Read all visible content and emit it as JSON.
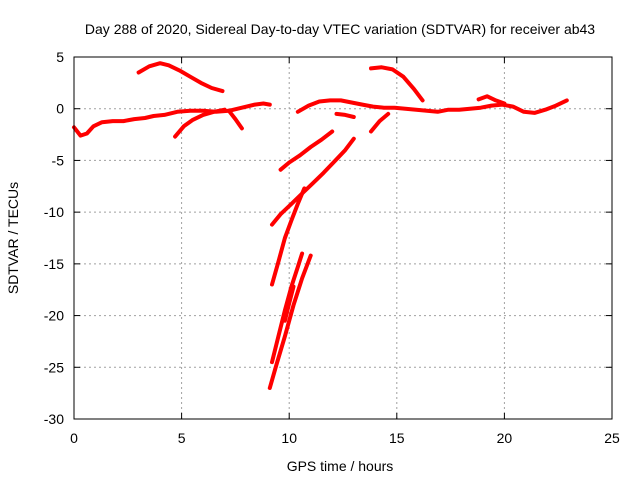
{
  "chart_data": {
    "type": "scatter",
    "title": "Day 288 of 2020, Sidereal Day-to-day VTEC variation (SDTVAR) for receiver ab43",
    "xlabel": "GPS time / hours",
    "ylabel": "SDTVAR / TECUs",
    "xlim": [
      0,
      25
    ],
    "ylim": [
      -30,
      5
    ],
    "xticks": [
      0,
      5,
      10,
      15,
      20,
      25
    ],
    "yticks": [
      -30,
      -25,
      -20,
      -15,
      -10,
      -5,
      0,
      5
    ],
    "grid": true,
    "series_color": "#ff0000",
    "series": [
      {
        "x": [
          0.0,
          0.3,
          0.6,
          0.9,
          1.3,
          1.8,
          2.3,
          2.8,
          3.3,
          3.7,
          4.2,
          4.8,
          5.4,
          6.0,
          6.6,
          7.2,
          7.8,
          8.4,
          8.8,
          9.1
        ],
        "y": [
          -1.8,
          -2.6,
          -2.4,
          -1.7,
          -1.3,
          -1.2,
          -1.2,
          -1.0,
          -0.9,
          -0.7,
          -0.6,
          -0.3,
          -0.2,
          -0.2,
          -0.3,
          -0.2,
          0.1,
          0.4,
          0.5,
          0.4
        ]
      },
      {
        "x": [
          3.0,
          3.5,
          4.0,
          4.4,
          4.9,
          5.4,
          5.9,
          6.4,
          6.9
        ],
        "y": [
          3.5,
          4.1,
          4.4,
          4.2,
          3.7,
          3.1,
          2.5,
          2.0,
          1.7
        ]
      },
      {
        "x": [
          4.7,
          5.1,
          5.5,
          6.0,
          6.5,
          7.0
        ],
        "y": [
          -2.7,
          -1.7,
          -1.1,
          -0.6,
          -0.3,
          -0.1
        ]
      },
      {
        "x": [
          7.2,
          7.5,
          7.8
        ],
        "y": [
          -0.2,
          -1.0,
          -1.9
        ]
      },
      {
        "x": [
          10.4,
          10.9,
          11.4,
          11.9,
          12.4,
          12.9,
          13.4,
          13.9,
          14.4,
          14.9,
          15.4,
          15.9,
          16.4,
          16.9,
          17.4,
          17.9,
          18.4,
          18.9,
          19.4,
          19.9,
          20.4,
          20.9,
          21.4,
          21.9,
          22.4,
          22.9
        ],
        "y": [
          -0.3,
          0.3,
          0.7,
          0.8,
          0.8,
          0.6,
          0.4,
          0.2,
          0.1,
          0.1,
          0.0,
          -0.1,
          -0.2,
          -0.3,
          -0.1,
          -0.1,
          0.0,
          0.1,
          0.3,
          0.4,
          0.2,
          -0.3,
          -0.4,
          -0.1,
          0.3,
          0.8
        ]
      },
      {
        "x": [
          12.2,
          12.6,
          13.0
        ],
        "y": [
          -0.5,
          -0.6,
          -0.8
        ]
      },
      {
        "x": [
          13.8,
          14.2,
          14.6
        ],
        "y": [
          -2.2,
          -1.2,
          -0.5
        ]
      },
      {
        "x": [
          13.8,
          14.3,
          14.8,
          15.3,
          15.8,
          16.2
        ],
        "y": [
          3.9,
          4.0,
          3.8,
          3.1,
          1.9,
          0.8
        ]
      },
      {
        "x": [
          18.8,
          19.2,
          19.6,
          20.0
        ],
        "y": [
          0.9,
          1.2,
          0.8,
          0.5
        ]
      },
      {
        "x": [
          9.6,
          10.0,
          10.5,
          11.0,
          11.5,
          12.0
        ],
        "y": [
          -5.9,
          -5.2,
          -4.5,
          -3.7,
          -3.0,
          -2.2
        ]
      },
      {
        "x": [
          9.2,
          9.6,
          10.1,
          10.6,
          11.1,
          11.6,
          12.1,
          12.6,
          13.0
        ],
        "y": [
          -11.2,
          -10.2,
          -9.2,
          -8.2,
          -7.2,
          -6.2,
          -5.1,
          -4.0,
          -2.9
        ]
      },
      {
        "x": [
          9.2,
          9.5,
          9.8,
          10.1,
          10.4,
          10.7
        ],
        "y": [
          -17.0,
          -14.8,
          -12.5,
          -10.8,
          -9.2,
          -7.7
        ]
      },
      {
        "x": [
          9.2,
          9.5,
          9.8,
          10.1,
          10.4,
          10.6
        ],
        "y": [
          -24.5,
          -22.0,
          -19.5,
          -17.2,
          -15.3,
          -14.0
        ]
      },
      {
        "x": [
          9.1,
          9.4,
          9.8,
          10.2,
          10.6,
          11.0
        ],
        "y": [
          -27.0,
          -24.8,
          -22.0,
          -19.0,
          -16.4,
          -14.2
        ]
      },
      {
        "x": [
          9.8,
          10.0,
          10.2
        ],
        "y": [
          -20.5,
          -18.8,
          -17.2
        ]
      }
    ]
  }
}
